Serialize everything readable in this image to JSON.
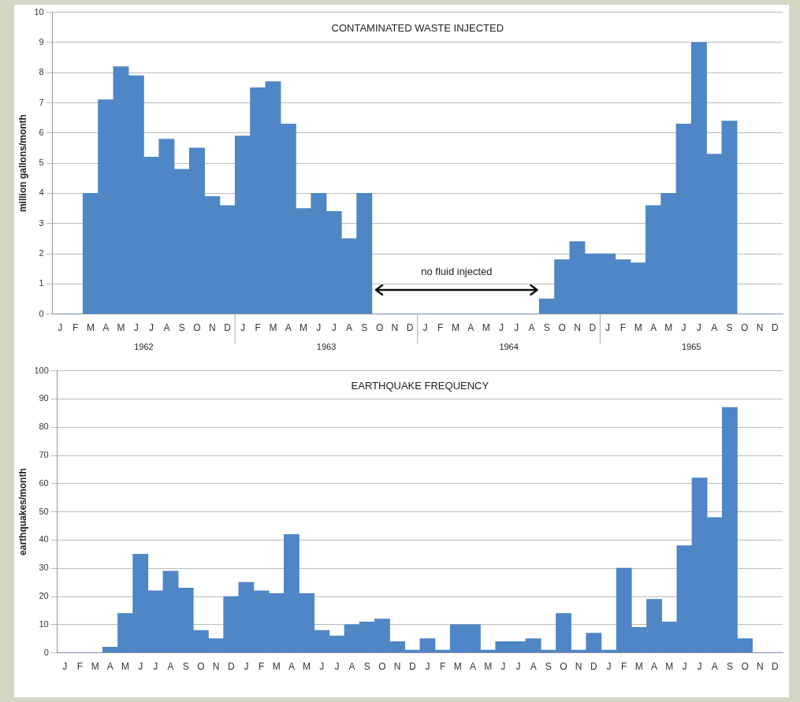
{
  "chart_data": [
    {
      "type": "bar",
      "title": "CONTAMINATED WASTE INJECTED",
      "ylabel": "million gallons/month",
      "categories": [
        "J",
        "F",
        "M",
        "A",
        "M",
        "J",
        "J",
        "A",
        "S",
        "O",
        "N",
        "D",
        "J",
        "F",
        "M",
        "A",
        "M",
        "J",
        "J",
        "A",
        "S",
        "O",
        "N",
        "D",
        "J",
        "F",
        "M",
        "A",
        "M",
        "J",
        "J",
        "A",
        "S",
        "O",
        "N",
        "D",
        "J",
        "F",
        "M",
        "A",
        "M",
        "J",
        "J",
        "A",
        "S",
        "O",
        "N",
        "D"
      ],
      "values": [
        0,
        0,
        4.0,
        7.1,
        8.2,
        7.9,
        5.2,
        5.8,
        4.8,
        5.5,
        3.9,
        3.6,
        5.9,
        7.5,
        7.7,
        6.3,
        3.5,
        4.0,
        3.4,
        2.5,
        4.0,
        0,
        0,
        0,
        0,
        0,
        0,
        0,
        0,
        0,
        0,
        0,
        0.5,
        1.8,
        2.4,
        2.0,
        2.0,
        1.8,
        1.7,
        3.6,
        4.0,
        6.3,
        9.0,
        5.3,
        6.4,
        0,
        0,
        0
      ],
      "color": "#4f86c6",
      "ylim": [
        0,
        10
      ],
      "yticks": [
        0,
        1,
        2,
        3,
        4,
        5,
        6,
        7,
        8,
        9,
        10
      ],
      "grid": "y",
      "annotations": [
        "no fluid injected",
        "1962",
        "1963",
        "1964",
        "1965"
      ]
    },
    {
      "type": "bar",
      "title": "EARTHQUAKE FREQUENCY",
      "ylabel": "earthquakes/month",
      "categories": [
        "J",
        "F",
        "M",
        "A",
        "M",
        "J",
        "J",
        "A",
        "S",
        "O",
        "N",
        "D",
        "J",
        "F",
        "M",
        "A",
        "M",
        "J",
        "J",
        "A",
        "S",
        "O",
        "N",
        "D",
        "J",
        "F",
        "M",
        "A",
        "M",
        "J",
        "J",
        "A",
        "S",
        "O",
        "N",
        "D",
        "J",
        "F",
        "M",
        "A",
        "M",
        "J",
        "J",
        "A",
        "S",
        "O",
        "N",
        "D"
      ],
      "values": [
        0,
        0,
        0,
        2,
        14,
        35,
        22,
        29,
        23,
        8,
        5,
        20,
        25,
        22,
        21,
        42,
        21,
        8,
        6,
        10,
        11,
        12,
        4,
        1,
        5,
        1,
        10,
        10,
        1,
        4,
        4,
        5,
        1,
        14,
        1,
        7,
        1,
        30,
        9,
        19,
        11,
        38,
        62,
        48,
        87,
        5,
        0,
        0
      ],
      "color": "#4f86c6",
      "ylim": [
        0,
        100
      ],
      "yticks": [
        0,
        10,
        20,
        30,
        40,
        50,
        60,
        70,
        80,
        90,
        100
      ],
      "grid": "y"
    }
  ]
}
